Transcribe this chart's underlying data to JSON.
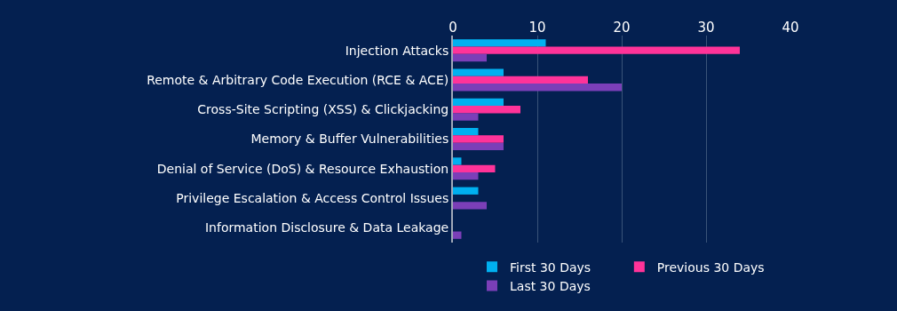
{
  "chart_data": {
    "type": "bar",
    "orientation": "horizontal",
    "categories": [
      "Injection Attacks",
      "Remote & Arbitrary Code Execution (RCE & ACE)",
      "Cross-Site Scripting (XSS) & Clickjacking",
      "Memory & Buffer Vulnerabilities",
      "Denial of Service (DoS) & Resource Exhaustion",
      "Privilege Escalation & Access Control Issues",
      "Information Disclosure & Data Leakage"
    ],
    "series": [
      {
        "name": "First 30 Days",
        "color": "#00b0f0",
        "values": [
          11,
          6,
          6,
          3,
          1,
          3,
          0
        ]
      },
      {
        "name": "Previous 30 Days",
        "color": "#ff3399",
        "values": [
          34,
          16,
          8,
          6,
          5,
          0,
          0
        ]
      },
      {
        "name": "Last 30 Days",
        "color": "#7b3fb8",
        "values": [
          4,
          20,
          3,
          6,
          3,
          4,
          1
        ]
      }
    ],
    "xlim": [
      0,
      40
    ],
    "xticks": [
      0,
      10,
      20,
      30,
      40
    ],
    "grid": "x",
    "legend": "bottom"
  }
}
